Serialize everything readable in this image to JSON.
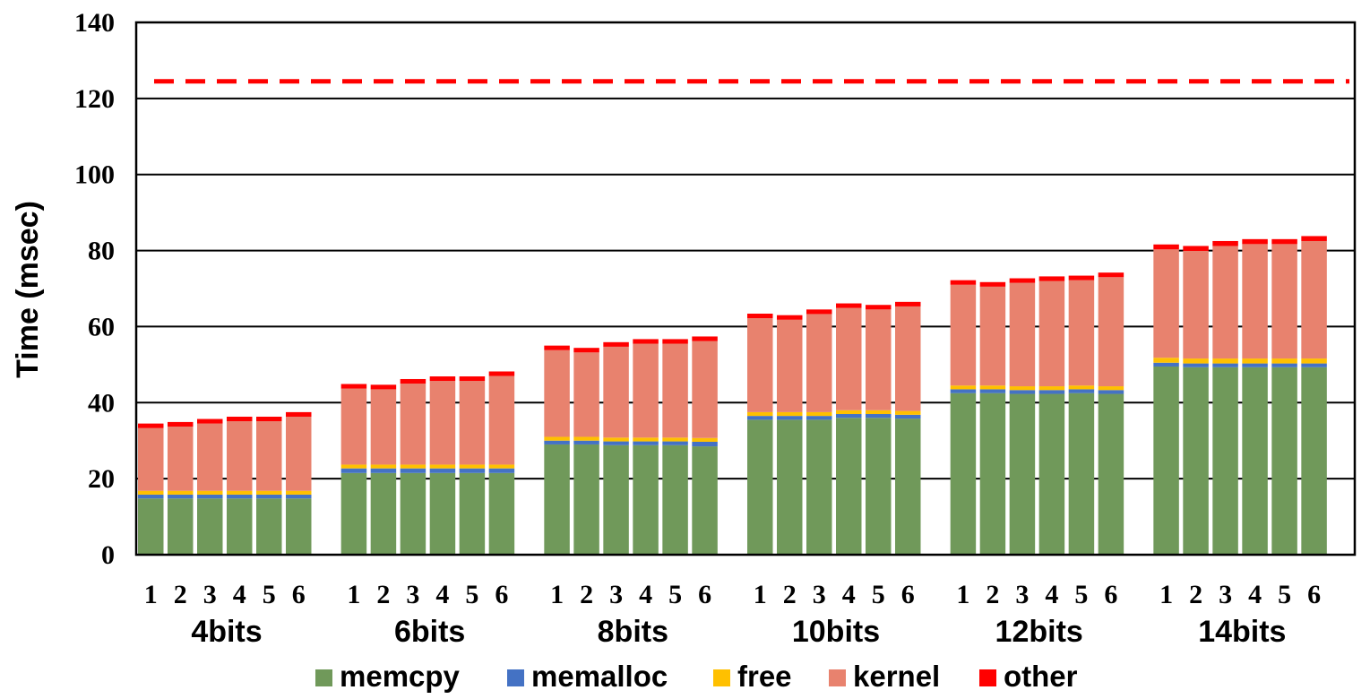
{
  "chart_data": {
    "type": "bar",
    "stacked": true,
    "title": "",
    "xlabel": "",
    "ylabel": "Time (msec)",
    "ylim": [
      0,
      140
    ],
    "yticks": [
      0,
      20,
      40,
      60,
      80,
      100,
      120,
      140
    ],
    "grid": true,
    "legend_position": "bottom",
    "groups": [
      "4bits",
      "6bits",
      "8bits",
      "10bits",
      "12bits",
      "14bits"
    ],
    "sub_categories": [
      "1",
      "2",
      "3",
      "4",
      "5",
      "6"
    ],
    "reference_line": {
      "value": 124.5,
      "style": "dashed",
      "color": "#ff0000"
    },
    "series": [
      {
        "name": "memcpy",
        "color": "#70995a",
        "values": [
          [
            14.8,
            14.8,
            14.8,
            14.8,
            14.8,
            14.8
          ],
          [
            21.5,
            21.5,
            21.5,
            21.5,
            21.5,
            21.5
          ],
          [
            29.0,
            29.0,
            28.8,
            28.8,
            28.8,
            28.5
          ],
          [
            35.5,
            35.5,
            35.5,
            36.0,
            36.0,
            35.8
          ],
          [
            42.5,
            42.5,
            42.3,
            42.3,
            42.5,
            42.3
          ],
          [
            49.5,
            49.3,
            49.3,
            49.3,
            49.3,
            49.3
          ]
        ]
      },
      {
        "name": "memalloc",
        "color": "#4472c4",
        "values": [
          [
            1.0,
            1.0,
            1.0,
            1.0,
            1.0,
            1.0
          ],
          [
            1.2,
            1.2,
            1.2,
            1.2,
            1.2,
            1.2
          ],
          [
            1.0,
            1.0,
            1.0,
            1.0,
            1.0,
            1.2
          ],
          [
            1.0,
            1.0,
            1.0,
            1.0,
            1.0,
            1.0
          ],
          [
            1.0,
            1.0,
            1.0,
            1.0,
            1.0,
            1.0
          ],
          [
            1.0,
            1.0,
            1.0,
            1.0,
            1.0,
            1.0
          ]
        ]
      },
      {
        "name": "free",
        "color": "#ffc000",
        "values": [
          [
            1.0,
            1.0,
            1.0,
            1.0,
            1.0,
            1.0
          ],
          [
            1.0,
            1.0,
            1.0,
            1.0,
            1.0,
            1.0
          ],
          [
            1.0,
            1.0,
            1.0,
            1.0,
            1.0,
            1.0
          ],
          [
            1.0,
            1.0,
            1.0,
            1.0,
            1.0,
            1.0
          ],
          [
            1.0,
            1.0,
            1.0,
            1.0,
            1.0,
            1.0
          ],
          [
            1.3,
            1.3,
            1.3,
            1.3,
            1.3,
            1.3
          ]
        ]
      },
      {
        "name": "kernel",
        "color": "#e8826e",
        "values": [
          [
            16.5,
            16.9,
            17.7,
            18.3,
            18.3,
            19.5
          ],
          [
            20.0,
            19.8,
            21.3,
            22.0,
            22.0,
            23.3
          ],
          [
            22.8,
            22.2,
            23.9,
            24.7,
            24.7,
            25.5
          ],
          [
            24.7,
            24.3,
            25.8,
            26.9,
            26.5,
            27.5
          ],
          [
            26.5,
            26.0,
            27.2,
            27.7,
            27.7,
            28.7
          ],
          [
            28.5,
            28.3,
            29.6,
            30.1,
            30.1,
            30.9
          ]
        ]
      },
      {
        "name": "other",
        "color": "#ff0000",
        "values": [
          [
            1.2,
            1.2,
            1.2,
            1.2,
            1.2,
            1.2
          ],
          [
            1.2,
            1.2,
            1.2,
            1.2,
            1.2,
            1.2
          ],
          [
            1.2,
            1.2,
            1.2,
            1.2,
            1.2,
            1.2
          ],
          [
            1.2,
            1.2,
            1.2,
            1.2,
            1.2,
            1.2
          ],
          [
            1.2,
            1.2,
            1.2,
            1.2,
            1.2,
            1.2
          ],
          [
            1.3,
            1.3,
            1.3,
            1.3,
            1.3,
            1.3
          ]
        ]
      }
    ]
  }
}
